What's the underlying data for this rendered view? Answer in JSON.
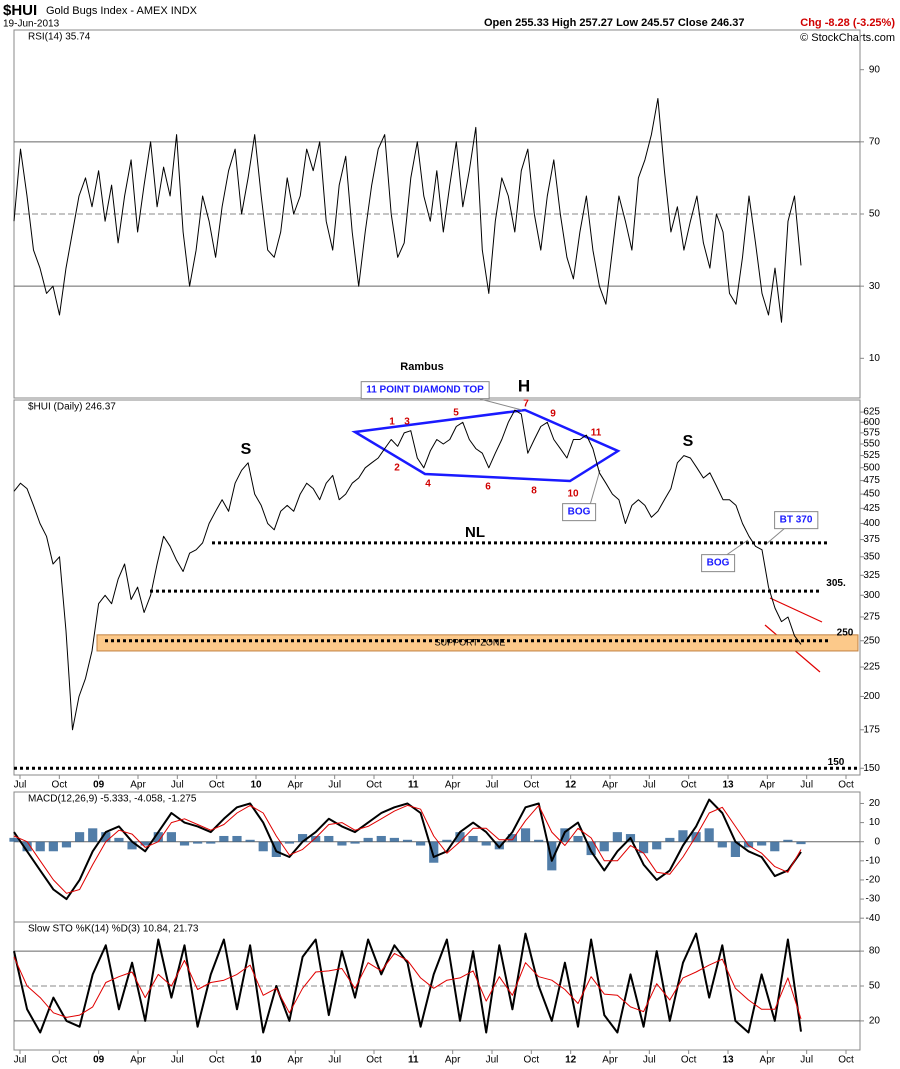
{
  "header": {
    "symbol": "$HUI",
    "name": "Gold Bugs Index - AMEX INDX",
    "date": "19-Jun-2013",
    "quote": "Open 255.33 High 257.27 Low 245.57 Close 246.37",
    "change": "Chg -8.28 (-3.25%)",
    "credit": "© StockCharts.com"
  },
  "chart_data": [
    {
      "type": "line",
      "title": "RSI(14) 35.74",
      "color": "#000000",
      "ylim": [
        -1,
        101
      ],
      "yticks": [
        10,
        30,
        50,
        70,
        90
      ],
      "levels": [
        70,
        30
      ],
      "dashed_levels": [
        50
      ],
      "values": [
        48,
        68,
        55,
        40,
        35,
        28,
        30,
        22,
        35,
        45,
        55,
        60,
        52,
        62,
        48,
        58,
        42,
        55,
        65,
        45,
        58,
        70,
        52,
        63,
        55,
        72,
        45,
        30,
        40,
        55,
        48,
        38,
        52,
        62,
        68,
        50,
        60,
        72,
        55,
        40,
        38,
        45,
        60,
        50,
        55,
        68,
        62,
        70,
        48,
        40,
        58,
        66,
        45,
        30,
        45,
        58,
        68,
        72,
        50,
        38,
        42,
        60,
        70,
        55,
        48,
        62,
        45,
        58,
        70,
        52,
        62,
        74,
        40,
        28,
        48,
        60,
        55,
        45,
        62,
        68,
        50,
        40,
        55,
        65,
        50,
        38,
        32,
        45,
        55,
        40,
        30,
        25,
        40,
        55,
        48,
        40,
        60,
        65,
        72,
        82,
        62,
        45,
        52,
        40,
        48,
        55,
        42,
        35,
        50,
        45,
        28,
        25,
        38,
        55,
        42,
        28,
        22,
        35,
        20,
        48,
        55,
        35.74
      ]
    },
    {
      "type": "line",
      "title": "$HUI (Daily) 246.37",
      "color": "#000000",
      "log": true,
      "ylim": [
        146,
        656
      ],
      "yticks": [
        625,
        600,
        575,
        550,
        525,
        500,
        475,
        450,
        425,
        400,
        375,
        350,
        325,
        300,
        275,
        250,
        225,
        200,
        175,
        150
      ],
      "xticks": [
        "Jul",
        "Oct",
        "09",
        "Apr",
        "Jul",
        "Oct",
        "10",
        "Apr",
        "Jul",
        "Oct",
        "11",
        "Apr",
        "Jul",
        "Oct",
        "12",
        "Apr",
        "Jul",
        "Oct",
        "13",
        "Apr",
        "Jul",
        "Oct"
      ],
      "values": [
        455,
        470,
        460,
        430,
        400,
        380,
        340,
        350,
        260,
        175,
        200,
        215,
        240,
        290,
        300,
        290,
        320,
        340,
        295,
        310,
        280,
        300,
        340,
        380,
        365,
        345,
        330,
        355,
        360,
        370,
        400,
        420,
        440,
        420,
        470,
        495,
        510,
        450,
        430,
        400,
        390,
        420,
        430,
        420,
        450,
        470,
        460,
        440,
        470,
        485,
        440,
        450,
        470,
        480,
        500,
        510,
        520,
        540,
        560,
        545,
        575,
        580,
        520,
        500,
        535,
        560,
        550,
        560,
        590,
        600,
        560,
        540,
        530,
        500,
        530,
        560,
        600,
        630,
        620,
        530,
        560,
        590,
        600,
        560,
        540,
        520,
        560,
        560,
        570,
        540,
        490,
        470,
        450,
        440,
        400,
        430,
        440,
        430,
        410,
        420,
        440,
        460,
        510,
        525,
        520,
        500,
        480,
        490,
        465,
        440,
        440,
        430,
        400,
        380,
        365,
        360,
        310,
        285,
        270,
        275,
        255,
        246.37
      ],
      "levels": [
        {
          "value": 370,
          "label": "NL"
        },
        {
          "value": 305,
          "label": "305."
        },
        {
          "value": 250,
          "label": "250"
        },
        {
          "value": 150,
          "label": "150"
        }
      ],
      "support_zone": {
        "from": 240,
        "to": 256,
        "label": "SUPPORT ZONE",
        "color": "#fcc98a"
      },
      "annotations": [
        "Rambus",
        "11 POINT DIAMOND TOP",
        "H",
        "S",
        "S",
        "BOG",
        "BOG",
        "BT 370",
        "1",
        "2",
        "3",
        "4",
        "5",
        "6",
        "7",
        "8",
        "9",
        "10",
        "11"
      ]
    },
    {
      "type": "line",
      "title": "MACD(12,26,9) -5.333, -4.058, -1.275",
      "ylim": [
        -42,
        26
      ],
      "yticks": [
        20,
        10,
        0,
        -10,
        -20,
        -30,
        -40
      ],
      "levels": [
        0
      ],
      "series": [
        {
          "color": "#000000",
          "values": [
            5,
            -5,
            -15,
            -25,
            -30,
            -20,
            -5,
            5,
            8,
            0,
            -5,
            5,
            15,
            10,
            8,
            5,
            12,
            18,
            20,
            10,
            -5,
            -8,
            0,
            5,
            12,
            8,
            5,
            10,
            15,
            18,
            20,
            15,
            -8,
            -5,
            5,
            10,
            5,
            -3,
            5,
            18,
            20,
            -10,
            5,
            10,
            -5,
            -15,
            -5,
            2,
            -12,
            -20,
            -15,
            -2,
            8,
            22,
            15,
            0,
            -5,
            -8,
            -18,
            -15,
            -5.333
          ]
        },
        {
          "color": "#e00000",
          "values": [
            3,
            0,
            -10,
            -20,
            -27,
            -25,
            -12,
            0,
            6,
            4,
            -3,
            0,
            10,
            12,
            9,
            6,
            9,
            15,
            19,
            15,
            3,
            -7,
            -4,
            2,
            9,
            10,
            6,
            8,
            12,
            16,
            19,
            17,
            3,
            -6,
            0,
            7,
            7,
            1,
            1,
            11,
            19,
            5,
            -2,
            7,
            2,
            -10,
            -10,
            -2,
            -6,
            -16,
            -17,
            -8,
            3,
            15,
            18,
            8,
            -2,
            -6,
            -13,
            -16,
            -4.058
          ]
        }
      ],
      "histogram": {
        "color": "#336699",
        "values": [
          2,
          -5,
          -5,
          -5,
          -3,
          5,
          7,
          5,
          2,
          -4,
          -2,
          5,
          5,
          -2,
          -1,
          -1,
          3,
          3,
          1,
          -5,
          -8,
          -1,
          4,
          3,
          3,
          -2,
          -1,
          2,
          3,
          2,
          1,
          -2,
          -11,
          1,
          5,
          3,
          -2,
          -4,
          4,
          7,
          1,
          -15,
          7,
          3,
          -7,
          -5,
          5,
          4,
          -6,
          -4,
          2,
          6,
          5,
          7,
          -3,
          -8,
          -3,
          -2,
          -5,
          1,
          -1.275
        ]
      }
    },
    {
      "type": "line",
      "title": "Slow STO %K(14) %D(3) 10.84, 21.73",
      "ylim": [
        -5,
        105
      ],
      "yticks": [
        80,
        50,
        20
      ],
      "levels": [
        80,
        20
      ],
      "dashed_levels": [
        50
      ],
      "series": [
        {
          "color": "#000000",
          "values": [
            80,
            30,
            10,
            40,
            20,
            15,
            60,
            85,
            30,
            70,
            20,
            90,
            40,
            85,
            15,
            60,
            90,
            30,
            85,
            10,
            50,
            20,
            75,
            90,
            25,
            80,
            40,
            90,
            60,
            85,
            70,
            15,
            60,
            90,
            20,
            80,
            10,
            85,
            30,
            95,
            50,
            20,
            70,
            15,
            90,
            25,
            10,
            60,
            15,
            80,
            20,
            70,
            95,
            40,
            85,
            20,
            10,
            60,
            20,
            90,
            10.84
          ]
        },
        {
          "color": "#e00000",
          "values": [
            75,
            50,
            40,
            27,
            23,
            25,
            32,
            53,
            58,
            62,
            40,
            60,
            50,
            72,
            47,
            53,
            55,
            60,
            68,
            42,
            48,
            27,
            48,
            62,
            63,
            65,
            48,
            70,
            63,
            78,
            72,
            57,
            48,
            55,
            57,
            63,
            37,
            58,
            42,
            70,
            58,
            55,
            47,
            35,
            58,
            43,
            42,
            32,
            28,
            52,
            38,
            57,
            62,
            68,
            73,
            48,
            38,
            30,
            30,
            57,
            21.73
          ]
        }
      ]
    }
  ]
}
